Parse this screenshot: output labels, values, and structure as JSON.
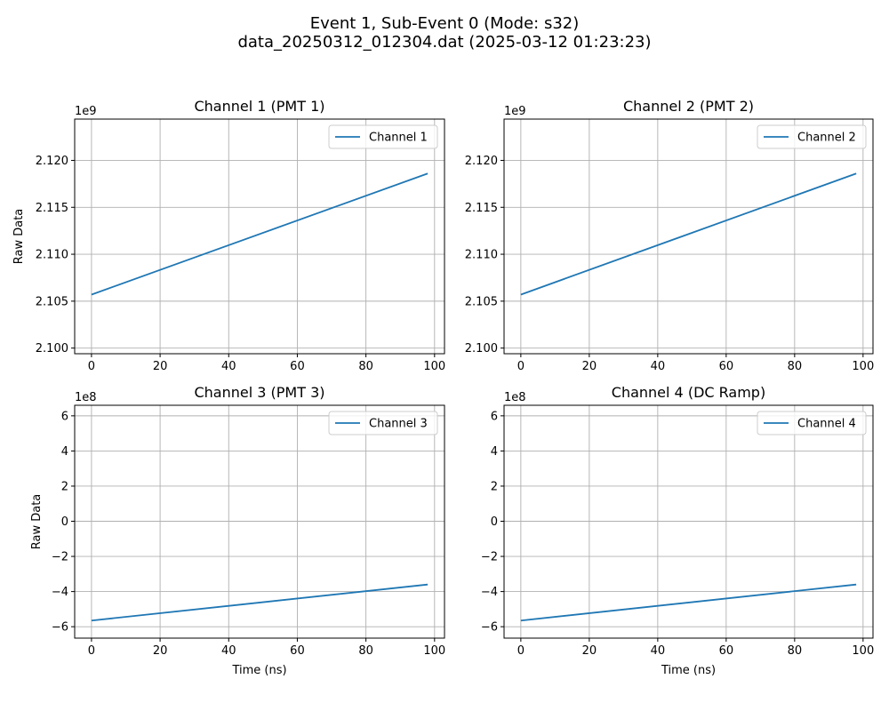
{
  "figure": {
    "title_line1": "Event 1, Sub-Event 0 (Mode: s32)",
    "title_line2": "data_20250312_012304.dat (2025-03-12 01:23:23)"
  },
  "colors": {
    "line": "#1f77b4",
    "grid": "#b0b0b0"
  },
  "chart_data": [
    {
      "type": "line",
      "title": "Channel 1 (PMT 1)",
      "xlabel": "",
      "ylabel": "Raw Data",
      "offset_text": "1e9",
      "xlim": [
        -4.9,
        102.9
      ],
      "ylim": [
        2.0994,
        2.1244
      ],
      "xticks": [
        0,
        20,
        40,
        60,
        80,
        100
      ],
      "xtick_labels": [
        "0",
        "20",
        "40",
        "60",
        "80",
        "100"
      ],
      "yticks": [
        2.1,
        2.105,
        2.11,
        2.115,
        2.12
      ],
      "ytick_labels": [
        "2.100",
        "2.105",
        "2.110",
        "2.115",
        "2.120"
      ],
      "grid": true,
      "legend": "upper right",
      "series": [
        {
          "name": "Channel 1",
          "x": [
            0,
            98
          ],
          "y": [
            2.1057,
            2.1186
          ]
        }
      ]
    },
    {
      "type": "line",
      "title": "Channel 2 (PMT 2)",
      "xlabel": "",
      "ylabel": "",
      "offset_text": "1e9",
      "xlim": [
        -4.9,
        102.9
      ],
      "ylim": [
        2.0994,
        2.1244
      ],
      "xticks": [
        0,
        20,
        40,
        60,
        80,
        100
      ],
      "xtick_labels": [
        "0",
        "20",
        "40",
        "60",
        "80",
        "100"
      ],
      "yticks": [
        2.1,
        2.105,
        2.11,
        2.115,
        2.12
      ],
      "ytick_labels": [
        "2.100",
        "2.105",
        "2.110",
        "2.115",
        "2.120"
      ],
      "grid": true,
      "legend": "upper right",
      "series": [
        {
          "name": "Channel 2",
          "x": [
            0,
            98
          ],
          "y": [
            2.1057,
            2.1186
          ]
        }
      ]
    },
    {
      "type": "line",
      "title": "Channel 3 (PMT 3)",
      "xlabel": "Time (ns)",
      "ylabel": "Raw Data",
      "offset_text": "1e8",
      "xlim": [
        -4.9,
        102.9
      ],
      "ylim": [
        -6.65,
        6.6
      ],
      "xticks": [
        0,
        20,
        40,
        60,
        80,
        100
      ],
      "xtick_labels": [
        "0",
        "20",
        "40",
        "60",
        "80",
        "100"
      ],
      "yticks": [
        -6,
        -4,
        -2,
        0,
        2,
        4,
        6
      ],
      "ytick_labels": [
        "−6",
        "−4",
        "−2",
        "0",
        "2",
        "4",
        "6"
      ],
      "grid": true,
      "legend": "upper right",
      "series": [
        {
          "name": "Channel 3",
          "x": [
            0,
            98
          ],
          "y": [
            -5.65,
            -3.6
          ]
        }
      ]
    },
    {
      "type": "line",
      "title": "Channel 4 (DC Ramp)",
      "xlabel": "Time (ns)",
      "ylabel": "",
      "offset_text": "1e8",
      "xlim": [
        -4.9,
        102.9
      ],
      "ylim": [
        -6.65,
        6.6
      ],
      "xticks": [
        0,
        20,
        40,
        60,
        80,
        100
      ],
      "xtick_labels": [
        "0",
        "20",
        "40",
        "60",
        "80",
        "100"
      ],
      "yticks": [
        -6,
        -4,
        -2,
        0,
        2,
        4,
        6
      ],
      "ytick_labels": [
        "−6",
        "−4",
        "−2",
        "0",
        "2",
        "4",
        "6"
      ],
      "grid": true,
      "legend": "upper right",
      "series": [
        {
          "name": "Channel 4",
          "x": [
            0,
            98
          ],
          "y": [
            -5.65,
            -3.6
          ]
        }
      ]
    }
  ]
}
